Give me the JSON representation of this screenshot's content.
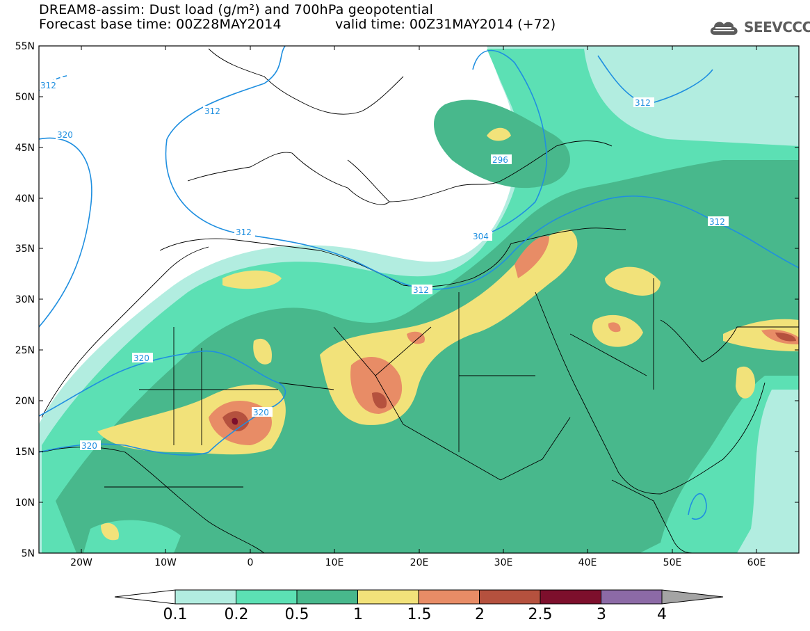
{
  "header": {
    "title_line1": "DREAM8-assim: Dust load (g/m²) and 700hPa geopotential",
    "title_line2": "Forecast base time: 00Z28MAY2014",
    "valid_time": "valid time: 00Z31MAY2014 (+72)",
    "logo_text": "SEEVCCC"
  },
  "map": {
    "lat_labels": [
      "55N",
      "50N",
      "45N",
      "40N",
      "35N",
      "30N",
      "25N",
      "20N",
      "15N",
      "10N",
      "5N"
    ],
    "lon_labels": [
      "20W",
      "10W",
      "0",
      "10E",
      "20E",
      "30E",
      "40E",
      "50E",
      "60E"
    ],
    "contour_labels": [
      "312",
      "312",
      "320",
      "312",
      "296",
      "312",
      "304",
      "312",
      "320",
      "320",
      "320",
      "312"
    ]
  },
  "colorbar": {
    "labels": [
      "0.1",
      "0.2",
      "0.5",
      "1",
      "1.5",
      "2",
      "2.5",
      "3",
      "4"
    ],
    "colors": [
      "#ffffff",
      "#b2ede0",
      "#5ce0b4",
      "#48b88c",
      "#f2e27a",
      "#e88c66",
      "#b5513e",
      "#7d0f2c",
      "#8c6aa6",
      "#a4a4a4"
    ]
  }
}
